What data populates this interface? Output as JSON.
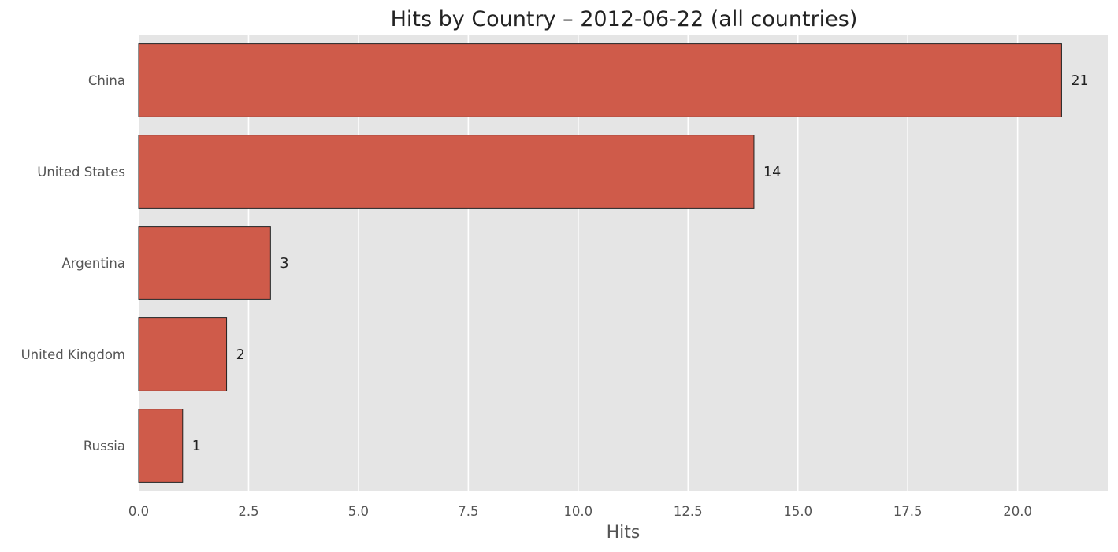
{
  "chart_data": {
    "type": "bar",
    "orientation": "horizontal",
    "title": "Hits by Country – 2012-06-22 (all countries)",
    "xlabel": "Hits",
    "ylabel": "",
    "categories": [
      "China",
      "United States",
      "Argentina",
      "United Kingdom",
      "Russia"
    ],
    "values": [
      21,
      14,
      3,
      2,
      1
    ],
    "data_labels": [
      "21",
      "14",
      "3",
      "2",
      "1"
    ],
    "xlim": [
      0,
      22.05
    ],
    "xticks": [
      0,
      2.5,
      5,
      7.5,
      10,
      12.5,
      15,
      17.5,
      20
    ],
    "xtick_labels": [
      "0.0",
      "2.5",
      "5.0",
      "7.5",
      "10.0",
      "12.5",
      "15.0",
      "17.5",
      "20.0"
    ],
    "grid": true,
    "legend": "none",
    "colors": {
      "bar": "#CF5B4A",
      "bar_edge": "#222222",
      "plot_background": "#E5E5E5",
      "grid": "#FFFFFF"
    }
  }
}
